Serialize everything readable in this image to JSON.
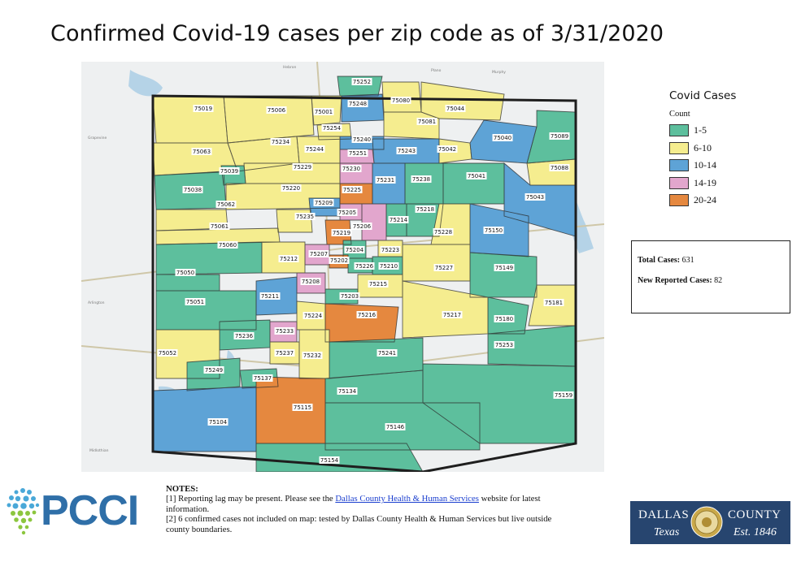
{
  "title": "Confirmed Covid-19 cases per zip code as of 3/31/2020",
  "legend": {
    "title": "Covid Cases",
    "subtitle": "Count",
    "items": [
      {
        "label": "1-5",
        "color": "#5dbf9d"
      },
      {
        "label": "6-10",
        "color": "#f5ed8f"
      },
      {
        "label": "10-14",
        "color": "#5ea3d6"
      },
      {
        "label": "14-19",
        "color": "#e2a6cd"
      },
      {
        "label": "20-24",
        "color": "#e5883f"
      }
    ]
  },
  "totals": {
    "total_label": "Total Cases:",
    "total_value": "631",
    "new_label": "New Reported Cases:",
    "new_value": "82"
  },
  "notes": {
    "heading": "NOTES:",
    "line1_pre": "[1] Reporting lag may be present. Please see the ",
    "line1_link": "Dallas County Health & Human Services",
    "line1_post": " website for latest information.",
    "line2": "[2] 6 confirmed cases not included on map: tested by Dallas County Health & Human Services but live outside county boundaries."
  },
  "logos": {
    "pcci": "PCCI",
    "dallas_word1": "DALLAS",
    "dallas_word2": "COUNTY",
    "dallas_word3": "Texas",
    "dallas_word4": "Est. 1846"
  },
  "zipcodes": [
    {
      "zip": "75252",
      "cat": 0
    },
    {
      "zip": "75248",
      "cat": 2
    },
    {
      "zip": "75080",
      "cat": 1
    },
    {
      "zip": "75044",
      "cat": 1
    },
    {
      "zip": "75019",
      "cat": 1
    },
    {
      "zip": "75006",
      "cat": 1
    },
    {
      "zip": "75001",
      "cat": 1
    },
    {
      "zip": "75254",
      "cat": 1
    },
    {
      "zip": "75081",
      "cat": 1
    },
    {
      "zip": "75040",
      "cat": 2
    },
    {
      "zip": "75089",
      "cat": 0
    },
    {
      "zip": "75240",
      "cat": 1
    },
    {
      "zip": "75234",
      "cat": 1
    },
    {
      "zip": "75244",
      "cat": 1
    },
    {
      "zip": "75251",
      "cat": 3
    },
    {
      "zip": "75243",
      "cat": 2
    },
    {
      "zip": "75042",
      "cat": 1
    },
    {
      "zip": "75063",
      "cat": 1
    },
    {
      "zip": "75229",
      "cat": 1
    },
    {
      "zip": "75230",
      "cat": 3
    },
    {
      "zip": "75088",
      "cat": 1
    },
    {
      "zip": "75039",
      "cat": 0
    },
    {
      "zip": "75231",
      "cat": 2
    },
    {
      "zip": "75238",
      "cat": 0
    },
    {
      "zip": "75041",
      "cat": 0
    },
    {
      "zip": "75038",
      "cat": 0
    },
    {
      "zip": "75220",
      "cat": 1
    },
    {
      "zip": "75225",
      "cat": 4
    },
    {
      "zip": "75043",
      "cat": 2
    },
    {
      "zip": "75062",
      "cat": 1
    },
    {
      "zip": "75209",
      "cat": 2
    },
    {
      "zip": "75218",
      "cat": 0
    },
    {
      "zip": "75235",
      "cat": 1
    },
    {
      "zip": "75205",
      "cat": 3
    },
    {
      "zip": "75214",
      "cat": 0
    },
    {
      "zip": "75061",
      "cat": 1
    },
    {
      "zip": "75206",
      "cat": 3
    },
    {
      "zip": "75219",
      "cat": 4
    },
    {
      "zip": "75228",
      "cat": 1
    },
    {
      "zip": "75150",
      "cat": 2
    },
    {
      "zip": "75060",
      "cat": 0
    },
    {
      "zip": "75207",
      "cat": 3
    },
    {
      "zip": "75204",
      "cat": 0
    },
    {
      "zip": "75223",
      "cat": 1
    },
    {
      "zip": "75212",
      "cat": 1
    },
    {
      "zip": "75202",
      "cat": 4
    },
    {
      "zip": "75226",
      "cat": 0
    },
    {
      "zip": "75210",
      "cat": 1
    },
    {
      "zip": "75227",
      "cat": 1
    },
    {
      "zip": "75149",
      "cat": 0
    },
    {
      "zip": "75050",
      "cat": 0
    },
    {
      "zip": "75208",
      "cat": 3
    },
    {
      "zip": "75215",
      "cat": 1
    },
    {
      "zip": "75211",
      "cat": 2
    },
    {
      "zip": "75203",
      "cat": 0
    },
    {
      "zip": "75051",
      "cat": 0
    },
    {
      "zip": "75181",
      "cat": 1
    },
    {
      "zip": "75224",
      "cat": 1
    },
    {
      "zip": "75216",
      "cat": 4
    },
    {
      "zip": "75217",
      "cat": 1
    },
    {
      "zip": "75180",
      "cat": 0
    },
    {
      "zip": "75233",
      "cat": 3
    },
    {
      "zip": "75236",
      "cat": 0
    },
    {
      "zip": "75253",
      "cat": 0
    },
    {
      "zip": "75052",
      "cat": 1
    },
    {
      "zip": "75237",
      "cat": 1
    },
    {
      "zip": "75232",
      "cat": 1
    },
    {
      "zip": "75241",
      "cat": 0
    },
    {
      "zip": "75249",
      "cat": 0
    },
    {
      "zip": "75137",
      "cat": 0
    },
    {
      "zip": "75134",
      "cat": 0
    },
    {
      "zip": "75159",
      "cat": 0
    },
    {
      "zip": "75115",
      "cat": 4
    },
    {
      "zip": "75104",
      "cat": 2
    },
    {
      "zip": "75146",
      "cat": 0
    },
    {
      "zip": "75154",
      "cat": 0
    }
  ]
}
